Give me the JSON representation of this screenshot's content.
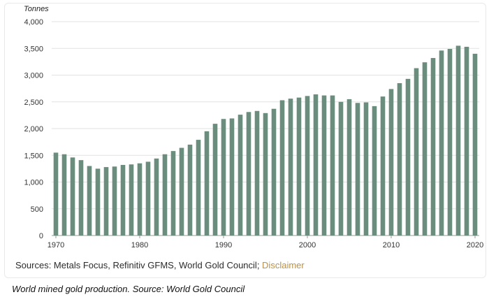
{
  "chart_data": {
    "type": "bar",
    "ylabel": "Tonnes",
    "ylim": [
      0,
      4000
    ],
    "yticks": [
      "0",
      "500",
      "1,000",
      "1,500",
      "2,000",
      "2,500",
      "3,000",
      "3,500",
      "4,000"
    ],
    "xticks": [
      "1970",
      "1980",
      "1990",
      "2000",
      "2010",
      "2020"
    ],
    "grid": true,
    "categories": [
      "1970",
      "1971",
      "1972",
      "1973",
      "1974",
      "1975",
      "1976",
      "1977",
      "1978",
      "1979",
      "1980",
      "1981",
      "1982",
      "1983",
      "1984",
      "1985",
      "1986",
      "1987",
      "1988",
      "1989",
      "1990",
      "1991",
      "1992",
      "1993",
      "1994",
      "1995",
      "1996",
      "1997",
      "1998",
      "1999",
      "2000",
      "2001",
      "2002",
      "2003",
      "2004",
      "2005",
      "2006",
      "2007",
      "2008",
      "2009",
      "2010",
      "2011",
      "2012",
      "2013",
      "2014",
      "2015",
      "2016",
      "2017",
      "2018",
      "2019",
      "2020"
    ],
    "values": [
      1550,
      1520,
      1460,
      1410,
      1300,
      1250,
      1280,
      1290,
      1320,
      1330,
      1350,
      1380,
      1440,
      1520,
      1580,
      1640,
      1700,
      1790,
      1950,
      2090,
      2180,
      2190,
      2260,
      2310,
      2330,
      2290,
      2370,
      2530,
      2560,
      2580,
      2610,
      2640,
      2620,
      2620,
      2500,
      2550,
      2480,
      2490,
      2420,
      2600,
      2740,
      2850,
      2930,
      3130,
      3240,
      3320,
      3460,
      3490,
      3550,
      3530,
      3400
    ],
    "bar_color": "#6b8d7e"
  },
  "footer": {
    "sources_text": "Sources: Metals Focus, Refinitiv GFMS, World Gold Council; ",
    "disclaimer_text": "Disclaimer"
  },
  "caption": "World mined gold production. Source: World Gold Council"
}
